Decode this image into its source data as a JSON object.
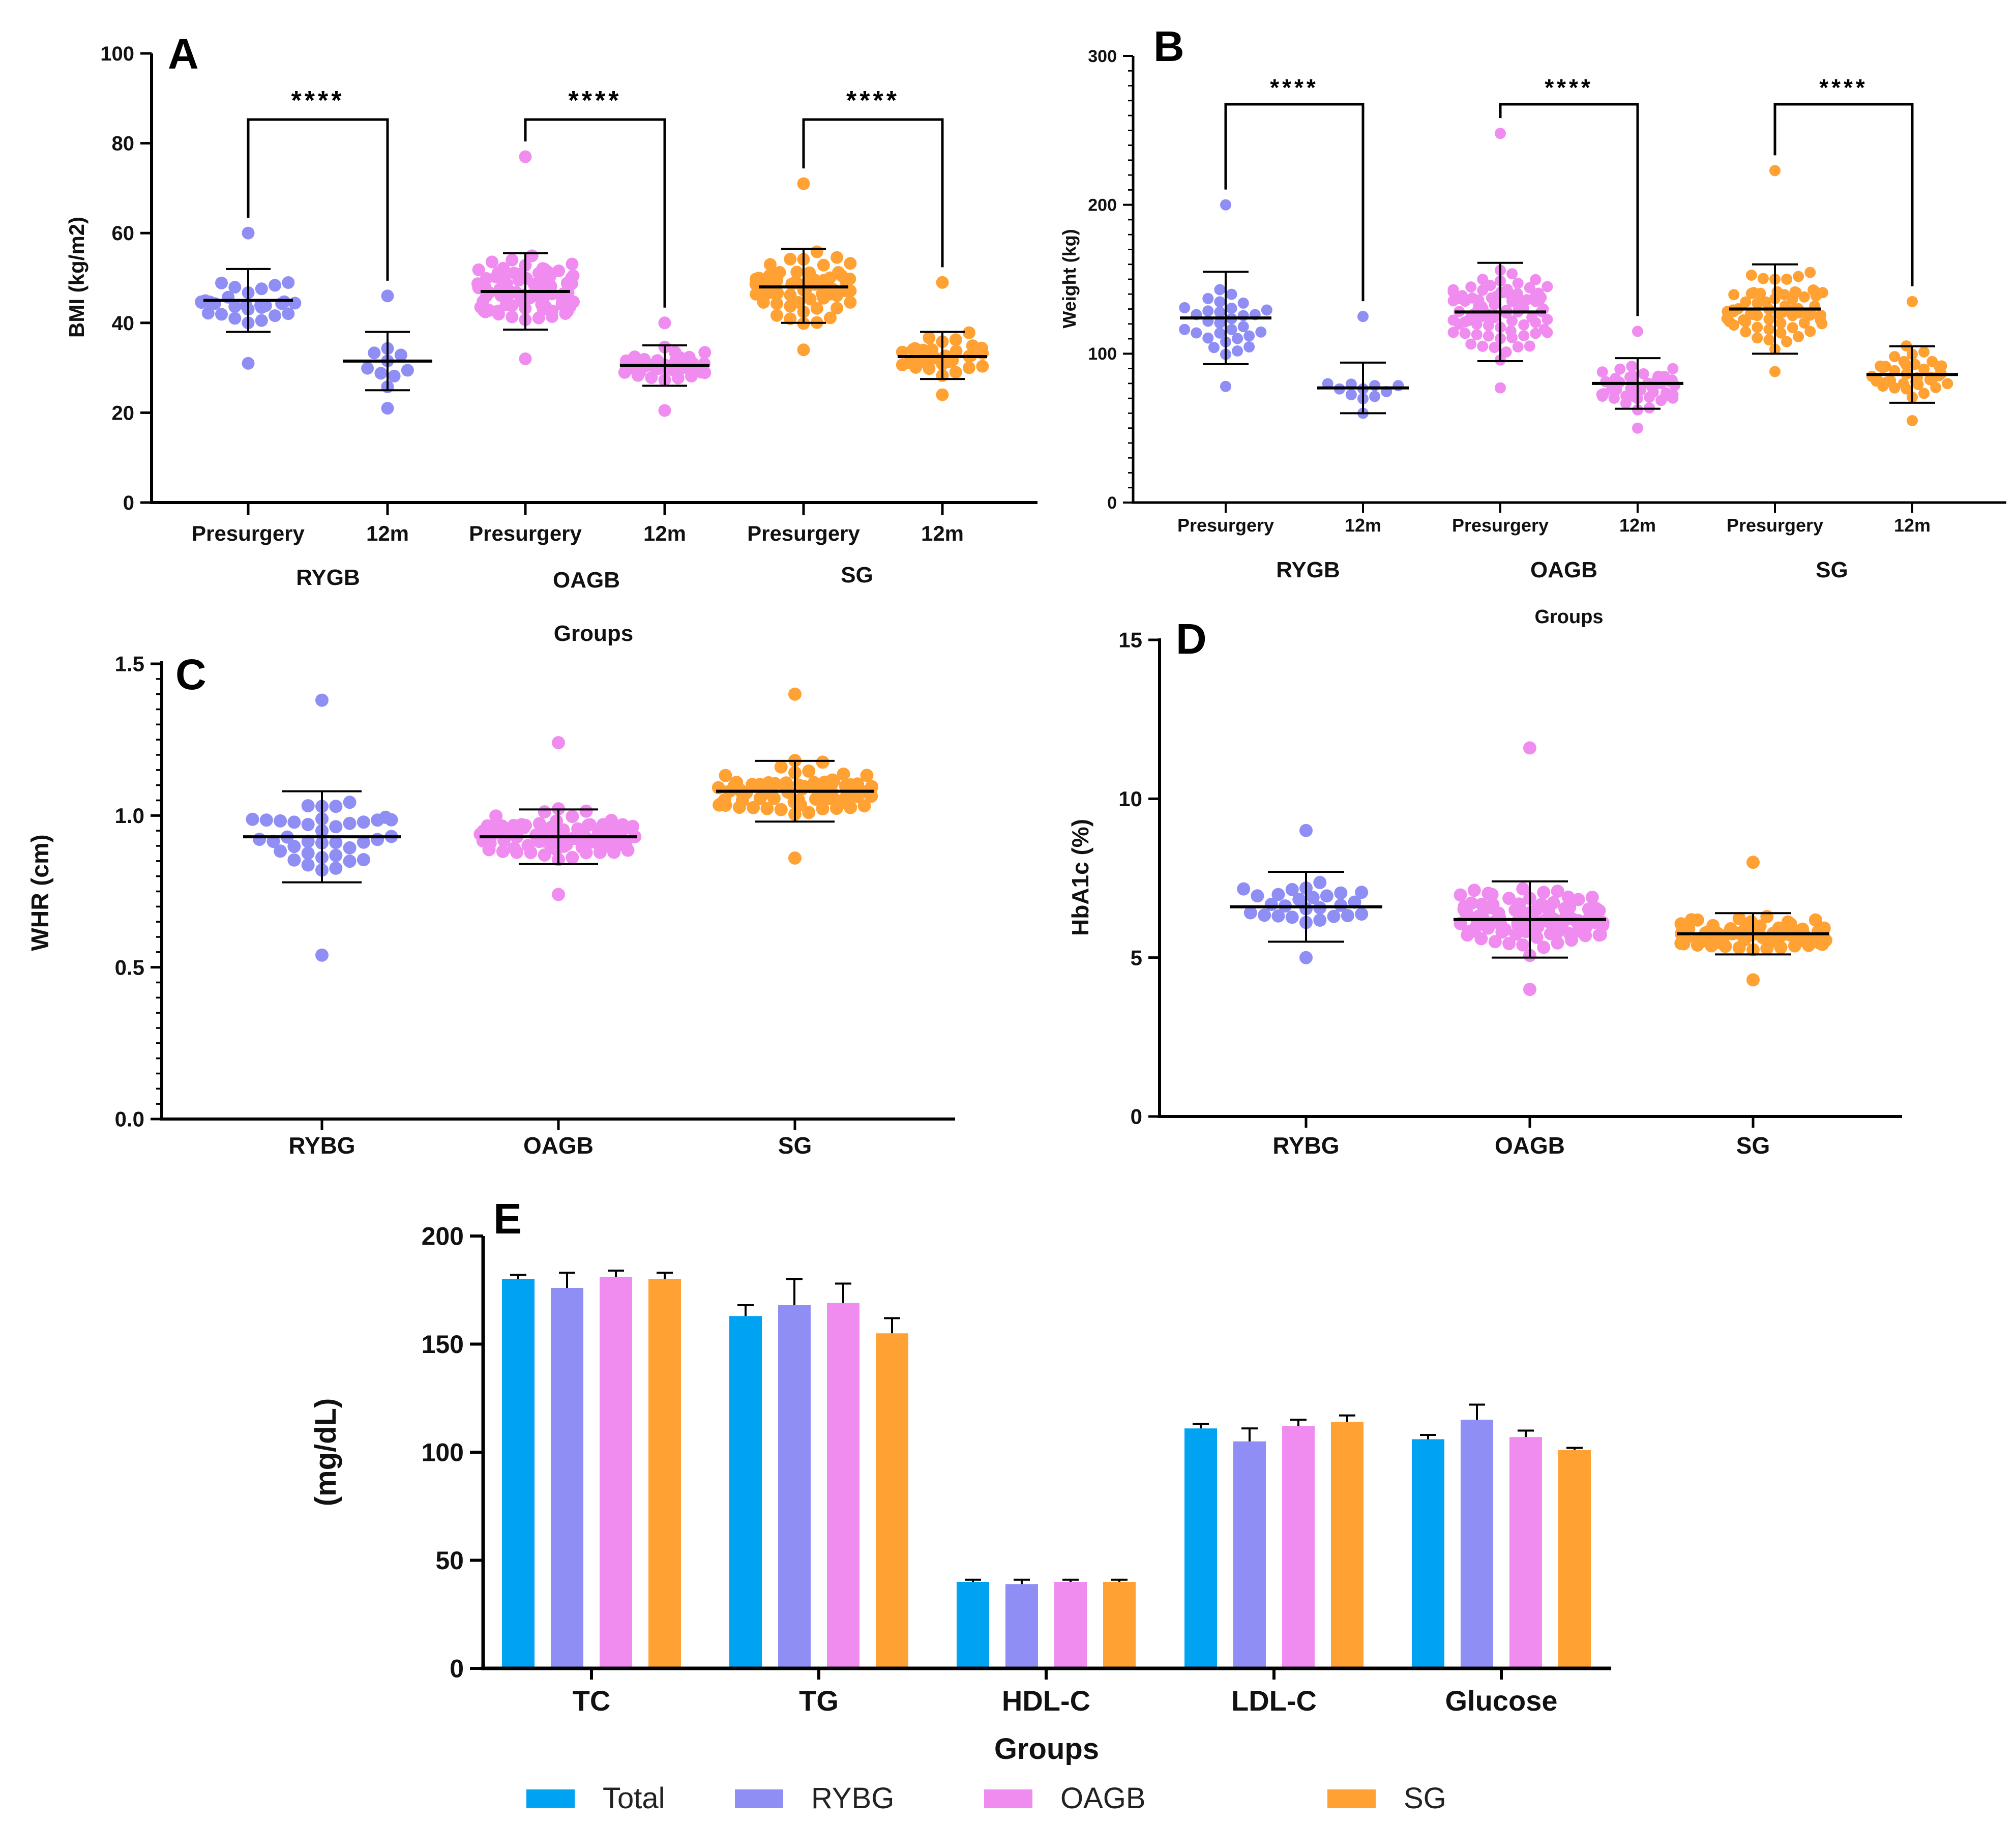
{
  "colors": {
    "Total": "#00a2f2",
    "RYGB": "#8e8ef5",
    "RYBG": "#8e8ef5",
    "OAGB": "#f08cf0",
    "SG": "#ffa133"
  },
  "chart_data": [
    {
      "panel": "A",
      "type": "scatter",
      "ylabel": "BMI (kg/m2)",
      "xlabel": "Groups",
      "ylim": [
        0,
        100
      ],
      "yticks": [
        0,
        20,
        40,
        60,
        80,
        100
      ],
      "categories": [
        "Presurgery",
        "12m",
        "Presurgery",
        "12m",
        "Presurgery",
        "12m"
      ],
      "groups": [
        "RYGB",
        "OAGB",
        "SG"
      ],
      "significance": "****",
      "series": [
        {
          "group": "RYGB",
          "time": "Presurgery",
          "mean": 45,
          "sd_low": 38,
          "sd_high": 52,
          "min": 31,
          "max": 60,
          "n": 30
        },
        {
          "group": "RYGB",
          "time": "12m",
          "mean": 31.5,
          "sd_low": 25,
          "sd_high": 38,
          "min": 21,
          "max": 46,
          "n": 11
        },
        {
          "group": "OAGB",
          "time": "Presurgery",
          "mean": 47,
          "sd_low": 38.5,
          "sd_high": 55.5,
          "min": 32,
          "max": 77,
          "n": 90
        },
        {
          "group": "OAGB",
          "time": "12m",
          "mean": 30.5,
          "sd_low": 26,
          "sd_high": 35,
          "min": 20.5,
          "max": 40,
          "n": 50
        },
        {
          "group": "SG",
          "time": "Presurgery",
          "mean": 48,
          "sd_low": 40,
          "sd_high": 56.5,
          "min": 34,
          "max": 71,
          "n": 70
        },
        {
          "group": "SG",
          "time": "12m",
          "mean": 32.5,
          "sd_low": 27.5,
          "sd_high": 38,
          "min": 24,
          "max": 49,
          "n": 40
        }
      ]
    },
    {
      "panel": "B",
      "type": "scatter",
      "ylabel": "Weight (kg)",
      "xlabel": "Groups",
      "ylim": [
        0,
        300
      ],
      "yticks": [
        0,
        100,
        200,
        300
      ],
      "categories": [
        "Presurgery",
        "12m",
        "Presurgery",
        "12m",
        "Presurgery",
        "12m"
      ],
      "groups": [
        "RYGB",
        "OAGB",
        "SG"
      ],
      "significance": "****",
      "series": [
        {
          "group": "RYGB",
          "time": "Presurgery",
          "mean": 124,
          "sd_low": 93,
          "sd_high": 155,
          "min": 78,
          "max": 200,
          "n": 32
        },
        {
          "group": "RYGB",
          "time": "12m",
          "mean": 77,
          "sd_low": 60,
          "sd_high": 94,
          "min": 60,
          "max": 125,
          "n": 12
        },
        {
          "group": "OAGB",
          "time": "Presurgery",
          "mean": 128,
          "sd_low": 95,
          "sd_high": 161,
          "min": 77,
          "max": 248,
          "n": 90
        },
        {
          "group": "OAGB",
          "time": "12m",
          "mean": 80,
          "sd_low": 63,
          "sd_high": 97,
          "min": 50,
          "max": 115,
          "n": 50
        },
        {
          "group": "SG",
          "time": "Presurgery",
          "mean": 130,
          "sd_low": 100,
          "sd_high": 160,
          "min": 88,
          "max": 223,
          "n": 70
        },
        {
          "group": "SG",
          "time": "12m",
          "mean": 86,
          "sd_low": 67,
          "sd_high": 105,
          "min": 55,
          "max": 135,
          "n": 40
        }
      ]
    },
    {
      "panel": "C",
      "type": "scatter",
      "ylabel": "WHR (cm)",
      "ylim": [
        0,
        1.5
      ],
      "yticks": [
        "0.0",
        "0.5",
        "1.0",
        "1.5"
      ],
      "yticks_values": [
        0,
        0.5,
        1.0,
        1.5
      ],
      "categories": [
        "RYBG",
        "OAGB",
        "SG"
      ],
      "series": [
        {
          "group": "RYBG",
          "mean": 0.93,
          "sd_low": 0.78,
          "sd_high": 1.08,
          "min": 0.54,
          "max": 1.38,
          "n": 40
        },
        {
          "group": "OAGB",
          "mean": 0.93,
          "sd_low": 0.84,
          "sd_high": 1.02,
          "min": 0.74,
          "max": 1.24,
          "n": 100
        },
        {
          "group": "SG",
          "mean": 1.08,
          "sd_low": 0.98,
          "sd_high": 1.18,
          "min": 0.86,
          "max": 1.4,
          "n": 80
        }
      ]
    },
    {
      "panel": "D",
      "type": "scatter",
      "ylabel": "HbA1c (%)",
      "ylim": [
        0,
        15
      ],
      "yticks": [
        0,
        5,
        10,
        15
      ],
      "categories": [
        "RYBG",
        "OAGB",
        "SG"
      ],
      "series": [
        {
          "group": "RYBG",
          "mean": 6.6,
          "sd_low": 5.5,
          "sd_high": 7.7,
          "min": 5.0,
          "max": 9.0,
          "n": 28
        },
        {
          "group": "OAGB",
          "mean": 6.2,
          "sd_low": 5.0,
          "sd_high": 7.4,
          "min": 4.0,
          "max": 11.6,
          "n": 100
        },
        {
          "group": "SG",
          "mean": 5.75,
          "sd_low": 5.1,
          "sd_high": 6.4,
          "min": 4.3,
          "max": 8.0,
          "n": 80
        }
      ]
    },
    {
      "panel": "E",
      "type": "bar",
      "ylabel": "(mg/dL)",
      "xlabel": "Groups",
      "ylim": [
        0,
        200
      ],
      "yticks": [
        0,
        50,
        100,
        150,
        200
      ],
      "categories": [
        "TC",
        "TG",
        "HDL-C",
        "LDL-C",
        "Glucose"
      ],
      "series": [
        {
          "name": "Total",
          "values": [
            180,
            163,
            40,
            111,
            106
          ],
          "errors": [
            2,
            5,
            1,
            2,
            2
          ]
        },
        {
          "name": "RYBG",
          "values": [
            176,
            168,
            39,
            105,
            115
          ],
          "errors": [
            7,
            12,
            2,
            6,
            7
          ]
        },
        {
          "name": "OAGB",
          "values": [
            181,
            169,
            40,
            112,
            107
          ],
          "errors": [
            3,
            9,
            1,
            3,
            3
          ]
        },
        {
          "name": "SG",
          "values": [
            180,
            155,
            40,
            114,
            101
          ],
          "errors": [
            3,
            7,
            1,
            3,
            1
          ]
        }
      ],
      "legend": [
        "Total",
        "RYBG",
        "OAGB",
        "SG"
      ]
    }
  ]
}
